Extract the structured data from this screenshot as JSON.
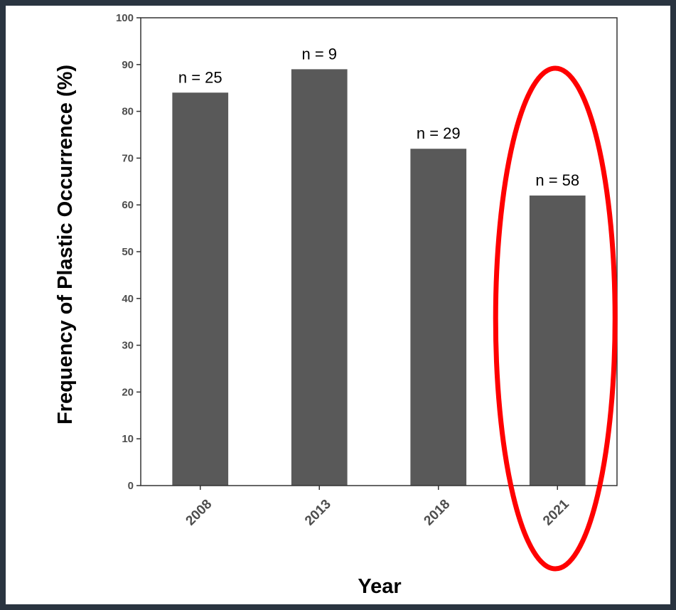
{
  "chart_data": {
    "type": "bar",
    "title": "",
    "xlabel": "Year",
    "ylabel": "Frequency of Plastic Occurrence (%)",
    "categories": [
      "2008",
      "2013",
      "2018",
      "2021"
    ],
    "values": [
      84,
      89,
      72,
      62
    ],
    "data_labels": [
      "n = 25",
      "n = 9",
      "n = 29",
      "n = 58"
    ],
    "ylim": [
      0,
      100
    ],
    "yticks": [
      0,
      10,
      20,
      30,
      40,
      50,
      60,
      70,
      80,
      90,
      100
    ],
    "grid": false,
    "legend": "none",
    "highlighted_category": "2021",
    "colors": {
      "bar": "#595959",
      "highlight": "#ff0000",
      "axis": "#333333",
      "background": "#2a3440"
    }
  }
}
